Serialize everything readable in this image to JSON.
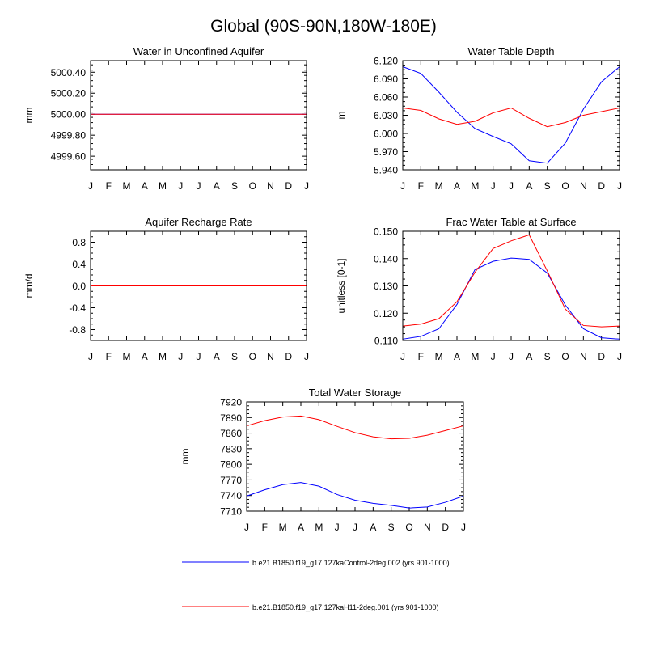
{
  "title": "Global (90S-90N,180W-180E)",
  "months": [
    "J",
    "F",
    "M",
    "A",
    "M",
    "J",
    "J",
    "A",
    "S",
    "O",
    "N",
    "D",
    "J"
  ],
  "series_colors": [
    "#0000ff",
    "#ff0000"
  ],
  "legend": [
    {
      "label": "b.e21.B1850.f19_g17.127kaControl-2deg.002 (yrs 901-1000)",
      "color": "#0000ff"
    },
    {
      "label": "b.e21.B1850.f19_g17.127kaH11-2deg.001 (yrs 901-1000)",
      "color": "#ff0000"
    }
  ],
  "chart_data": [
    {
      "type": "line",
      "title": "Water in Unconfined Aquifer",
      "ylabel": "mm",
      "ylim": [
        4999.47,
        5000.51
      ],
      "yticks": [
        "4999.60",
        "4999.80",
        "5000.00",
        "5000.20",
        "5000.40"
      ],
      "series": [
        {
          "values": [
            5000.0,
            5000.0,
            5000.0,
            5000.0,
            5000.0,
            5000.0,
            5000.0,
            5000.0,
            5000.0,
            5000.0,
            5000.0,
            5000.0,
            5000.0
          ]
        },
        {
          "values": [
            5000.0,
            5000.0,
            5000.0,
            5000.0,
            5000.0,
            5000.0,
            5000.0,
            5000.0,
            5000.0,
            5000.0,
            5000.0,
            5000.0,
            5000.0
          ]
        }
      ]
    },
    {
      "type": "line",
      "title": "Water Table Depth",
      "ylabel": "m",
      "ylim": [
        5.94,
        6.12
      ],
      "yticks": [
        "5.940",
        "5.970",
        "6.000",
        "6.030",
        "6.060",
        "6.090",
        "6.120"
      ],
      "series": [
        {
          "values": [
            6.11,
            6.099,
            6.068,
            6.035,
            6.008,
            5.995,
            5.983,
            5.955,
            5.951,
            5.984,
            6.04,
            6.085,
            6.11
          ]
        },
        {
          "values": [
            6.042,
            6.038,
            6.024,
            6.015,
            6.02,
            6.034,
            6.042,
            6.025,
            6.011,
            6.018,
            6.03,
            6.036,
            6.042
          ]
        }
      ]
    },
    {
      "type": "line",
      "title": "Aquifer Recharge Rate",
      "ylabel": "mm/d",
      "ylim": [
        -1.0,
        1.0
      ],
      "yticks": [
        "-0.8",
        "-0.4",
        "0.0",
        "0.4",
        "0.8"
      ],
      "series": [
        {
          "values": [
            0,
            0,
            0,
            0,
            0,
            0,
            0,
            0,
            0,
            0,
            0,
            0,
            0
          ]
        },
        {
          "values": [
            0,
            0,
            0,
            0,
            0,
            0,
            0,
            0,
            0,
            0,
            0,
            0,
            0
          ]
        }
      ]
    },
    {
      "type": "line",
      "title": "Frac Water Table at Surface",
      "ylabel": "unitless [0-1]",
      "ylim": [
        0.11,
        0.15
      ],
      "yticks": [
        "0.110",
        "0.120",
        "0.130",
        "0.140",
        "0.150"
      ],
      "series": [
        {
          "values": [
            0.1105,
            0.1115,
            0.1143,
            0.1232,
            0.136,
            0.139,
            0.1402,
            0.1397,
            0.1347,
            0.123,
            0.1143,
            0.111,
            0.1105
          ]
        },
        {
          "values": [
            0.1153,
            0.116,
            0.118,
            0.1242,
            0.135,
            0.1437,
            0.1465,
            0.1487,
            0.1355,
            0.1215,
            0.1155,
            0.115,
            0.1153
          ]
        }
      ]
    },
    {
      "type": "line",
      "title": "Total Water Storage",
      "ylabel": "mm",
      "ylim": [
        7710,
        7920
      ],
      "yticks": [
        "7710",
        "7740",
        "7770",
        "7800",
        "7830",
        "7860",
        "7890",
        "7920"
      ],
      "series": [
        {
          "values": [
            7739,
            7751,
            7761,
            7765,
            7758,
            7742,
            7731,
            7725,
            7721,
            7716,
            7718,
            7727,
            7739
          ]
        },
        {
          "values": [
            7874,
            7884,
            7891,
            7893,
            7886,
            7873,
            7861,
            7853,
            7849,
            7850,
            7856,
            7865,
            7874
          ]
        }
      ]
    }
  ]
}
